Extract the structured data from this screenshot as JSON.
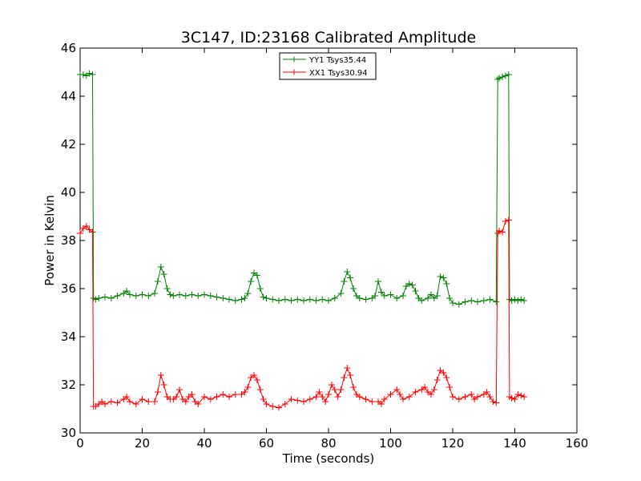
{
  "chart_data": {
    "type": "line",
    "title": "3C147, ID:23168 Calibrated Amplitude",
    "xlabel": "Time (seconds)",
    "ylabel": "Power in Kelvin",
    "xlim": [
      0,
      160
    ],
    "ylim": [
      30,
      46
    ],
    "x_ticks": [
      0,
      20,
      40,
      60,
      80,
      100,
      120,
      140,
      160
    ],
    "y_ticks": [
      30,
      32,
      34,
      36,
      38,
      40,
      42,
      44,
      46
    ],
    "grid": false,
    "legend_position": "top-center",
    "series": [
      {
        "name": "YY1 Tsys35.44",
        "color": "#008000",
        "marker": "+",
        "points": [
          [
            0,
            44.9
          ],
          [
            1,
            44.9
          ],
          [
            2,
            44.85
          ],
          [
            3,
            44.95
          ],
          [
            4,
            44.9
          ],
          [
            4.3,
            35.6
          ],
          [
            5,
            35.55
          ],
          [
            6,
            35.6
          ],
          [
            8,
            35.65
          ],
          [
            10,
            35.6
          ],
          [
            12,
            35.7
          ],
          [
            14,
            35.8
          ],
          [
            15,
            35.9
          ],
          [
            16,
            35.75
          ],
          [
            18,
            35.7
          ],
          [
            20,
            35.75
          ],
          [
            22,
            35.7
          ],
          [
            24,
            35.8
          ],
          [
            25,
            36.3
          ],
          [
            26,
            36.9
          ],
          [
            27,
            36.6
          ],
          [
            28,
            36.0
          ],
          [
            29,
            35.75
          ],
          [
            30,
            35.7
          ],
          [
            32,
            35.75
          ],
          [
            34,
            35.7
          ],
          [
            36,
            35.75
          ],
          [
            38,
            35.7
          ],
          [
            40,
            35.75
          ],
          [
            42,
            35.7
          ],
          [
            44,
            35.65
          ],
          [
            46,
            35.6
          ],
          [
            48,
            35.55
          ],
          [
            50,
            35.5
          ],
          [
            52,
            35.55
          ],
          [
            53,
            35.6
          ],
          [
            54,
            35.8
          ],
          [
            55,
            36.3
          ],
          [
            56,
            36.65
          ],
          [
            57,
            36.55
          ],
          [
            58,
            36.0
          ],
          [
            59,
            35.65
          ],
          [
            60,
            35.6
          ],
          [
            62,
            35.55
          ],
          [
            64,
            35.5
          ],
          [
            66,
            35.55
          ],
          [
            68,
            35.5
          ],
          [
            70,
            35.55
          ],
          [
            72,
            35.5
          ],
          [
            74,
            35.55
          ],
          [
            76,
            35.5
          ],
          [
            78,
            35.55
          ],
          [
            80,
            35.5
          ],
          [
            82,
            35.6
          ],
          [
            84,
            35.8
          ],
          [
            85,
            36.3
          ],
          [
            86,
            36.7
          ],
          [
            87,
            36.45
          ],
          [
            88,
            36.0
          ],
          [
            89,
            35.7
          ],
          [
            90,
            35.6
          ],
          [
            92,
            35.55
          ],
          [
            94,
            35.6
          ],
          [
            95,
            35.7
          ],
          [
            96,
            36.3
          ],
          [
            97,
            35.85
          ],
          [
            98,
            35.7
          ],
          [
            100,
            35.75
          ],
          [
            102,
            35.6
          ],
          [
            104,
            35.7
          ],
          [
            105,
            36.1
          ],
          [
            106,
            36.2
          ],
          [
            107,
            36.15
          ],
          [
            108,
            35.9
          ],
          [
            109,
            35.6
          ],
          [
            110,
            35.5
          ],
          [
            112,
            35.6
          ],
          [
            113,
            35.75
          ],
          [
            114,
            35.6
          ],
          [
            115,
            35.7
          ],
          [
            116,
            36.5
          ],
          [
            117,
            36.45
          ],
          [
            118,
            36.2
          ],
          [
            119,
            35.6
          ],
          [
            120,
            35.4
          ],
          [
            122,
            35.35
          ],
          [
            124,
            35.45
          ],
          [
            126,
            35.5
          ],
          [
            128,
            35.45
          ],
          [
            130,
            35.5
          ],
          [
            132,
            35.55
          ],
          [
            134,
            35.45
          ],
          [
            134.5,
            44.7
          ],
          [
            135,
            44.75
          ],
          [
            136,
            44.8
          ],
          [
            137,
            44.85
          ],
          [
            138,
            44.9
          ],
          [
            138.3,
            35.55
          ],
          [
            139,
            35.5
          ],
          [
            140,
            35.55
          ],
          [
            141,
            35.5
          ],
          [
            142,
            35.55
          ],
          [
            143,
            35.5
          ]
        ]
      },
      {
        "name": "XX1 Tsys30.94",
        "color": "#ff0000",
        "marker": "+",
        "points": [
          [
            0,
            38.3
          ],
          [
            1,
            38.5
          ],
          [
            2,
            38.6
          ],
          [
            3,
            38.45
          ],
          [
            4,
            38.35
          ],
          [
            4.3,
            31.1
          ],
          [
            5,
            31.1
          ],
          [
            6,
            31.2
          ],
          [
            7,
            31.3
          ],
          [
            8,
            31.2
          ],
          [
            10,
            31.3
          ],
          [
            12,
            31.25
          ],
          [
            14,
            31.4
          ],
          [
            15,
            31.5
          ],
          [
            16,
            31.3
          ],
          [
            18,
            31.2
          ],
          [
            20,
            31.4
          ],
          [
            22,
            31.3
          ],
          [
            24,
            31.3
          ],
          [
            25,
            31.7
          ],
          [
            26,
            32.4
          ],
          [
            27,
            32.0
          ],
          [
            28,
            31.5
          ],
          [
            29,
            31.4
          ],
          [
            30,
            31.4
          ],
          [
            31,
            31.5
          ],
          [
            32,
            31.8
          ],
          [
            33,
            31.4
          ],
          [
            34,
            31.3
          ],
          [
            35,
            31.5
          ],
          [
            36,
            31.6
          ],
          [
            37,
            31.3
          ],
          [
            38,
            31.2
          ],
          [
            40,
            31.5
          ],
          [
            42,
            31.4
          ],
          [
            44,
            31.5
          ],
          [
            46,
            31.6
          ],
          [
            48,
            31.5
          ],
          [
            50,
            31.6
          ],
          [
            52,
            31.6
          ],
          [
            53,
            31.7
          ],
          [
            54,
            31.9
          ],
          [
            55,
            32.3
          ],
          [
            56,
            32.4
          ],
          [
            57,
            32.2
          ],
          [
            58,
            31.8
          ],
          [
            59,
            31.4
          ],
          [
            60,
            31.2
          ],
          [
            62,
            31.1
          ],
          [
            64,
            31.05
          ],
          [
            66,
            31.2
          ],
          [
            68,
            31.4
          ],
          [
            70,
            31.35
          ],
          [
            72,
            31.3
          ],
          [
            74,
            31.4
          ],
          [
            76,
            31.5
          ],
          [
            77,
            31.7
          ],
          [
            78,
            31.5
          ],
          [
            79,
            31.3
          ],
          [
            80,
            31.6
          ],
          [
            81,
            32.0
          ],
          [
            82,
            31.8
          ],
          [
            83,
            31.5
          ],
          [
            84,
            31.8
          ],
          [
            85,
            32.3
          ],
          [
            86,
            32.7
          ],
          [
            87,
            32.4
          ],
          [
            88,
            31.9
          ],
          [
            89,
            31.6
          ],
          [
            90,
            31.5
          ],
          [
            92,
            31.4
          ],
          [
            94,
            31.3
          ],
          [
            96,
            31.3
          ],
          [
            97,
            31.2
          ],
          [
            98,
            31.4
          ],
          [
            100,
            31.6
          ],
          [
            102,
            31.8
          ],
          [
            103,
            31.6
          ],
          [
            104,
            31.4
          ],
          [
            106,
            31.5
          ],
          [
            108,
            31.7
          ],
          [
            110,
            31.8
          ],
          [
            111,
            31.9
          ],
          [
            112,
            31.7
          ],
          [
            113,
            31.6
          ],
          [
            114,
            31.8
          ],
          [
            115,
            32.2
          ],
          [
            116,
            32.6
          ],
          [
            117,
            32.5
          ],
          [
            118,
            32.3
          ],
          [
            119,
            31.9
          ],
          [
            120,
            31.5
          ],
          [
            122,
            31.4
          ],
          [
            124,
            31.5
          ],
          [
            126,
            31.6
          ],
          [
            127,
            31.4
          ],
          [
            128,
            31.5
          ],
          [
            130,
            31.6
          ],
          [
            131,
            31.7
          ],
          [
            132,
            31.5
          ],
          [
            133,
            31.3
          ],
          [
            134,
            31.25
          ],
          [
            134.5,
            38.3
          ],
          [
            135,
            38.4
          ],
          [
            136,
            38.35
          ],
          [
            137,
            38.8
          ],
          [
            138,
            38.85
          ],
          [
            138.3,
            31.5
          ],
          [
            139,
            31.45
          ],
          [
            140,
            31.4
          ],
          [
            141,
            31.6
          ],
          [
            142,
            31.55
          ],
          [
            143,
            31.5
          ]
        ]
      }
    ]
  }
}
